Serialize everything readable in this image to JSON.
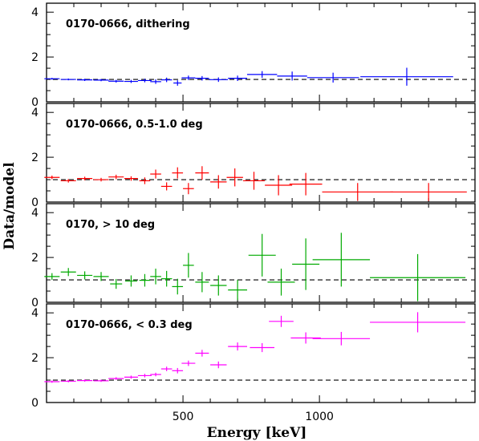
{
  "chart_data": {
    "type": "scatter",
    "xlabel": "Energy [keV]",
    "ylabel": "Data/model",
    "xlim": [
      0,
      1570
    ],
    "ylim": [
      0,
      4.4
    ],
    "x_ticks": [
      500,
      1000
    ],
    "y_ticks": [
      0,
      2,
      4
    ],
    "reference_line": 1,
    "panels": [
      {
        "label": "0170-0666, dithering",
        "color": "#0000ff",
        "points": [
          {
            "x": 20,
            "xerr": 28,
            "y": 1.03,
            "yerr": 0.04
          },
          {
            "x": 80,
            "xerr": 28,
            "y": 1.0,
            "yerr": 0.04
          },
          {
            "x": 140,
            "xerr": 28,
            "y": 0.98,
            "yerr": 0.05
          },
          {
            "x": 200,
            "xerr": 28,
            "y": 0.97,
            "yerr": 0.05
          },
          {
            "x": 255,
            "xerr": 28,
            "y": 0.92,
            "yerr": 0.06
          },
          {
            "x": 310,
            "xerr": 25,
            "y": 0.91,
            "yerr": 0.07
          },
          {
            "x": 360,
            "xerr": 25,
            "y": 0.95,
            "yerr": 0.08
          },
          {
            "x": 400,
            "xerr": 20,
            "y": 0.9,
            "yerr": 0.1
          },
          {
            "x": 440,
            "xerr": 20,
            "y": 0.98,
            "yerr": 0.1
          },
          {
            "x": 480,
            "xerr": 15,
            "y": 0.84,
            "yerr": 0.12
          },
          {
            "x": 520,
            "xerr": 25,
            "y": 1.07,
            "yerr": 0.1
          },
          {
            "x": 570,
            "xerr": 25,
            "y": 1.05,
            "yerr": 0.1
          },
          {
            "x": 630,
            "xerr": 35,
            "y": 0.99,
            "yerr": 0.1
          },
          {
            "x": 700,
            "xerr": 35,
            "y": 1.05,
            "yerr": 0.12
          },
          {
            "x": 790,
            "xerr": 55,
            "y": 1.22,
            "yerr": 0.15
          },
          {
            "x": 900,
            "xerr": 55,
            "y": 1.15,
            "yerr": 0.2
          },
          {
            "x": 1050,
            "xerr": 95,
            "y": 1.08,
            "yerr": 0.22
          },
          {
            "x": 1320,
            "xerr": 170,
            "y": 1.12,
            "yerr": 0.4
          }
        ]
      },
      {
        "label": "0170-0666, 0.5-1.0 deg",
        "color": "#ff0000",
        "points": [
          {
            "x": 20,
            "xerr": 28,
            "y": 1.1,
            "yerr": 0.08
          },
          {
            "x": 80,
            "xerr": 28,
            "y": 0.95,
            "yerr": 0.08
          },
          {
            "x": 140,
            "xerr": 28,
            "y": 1.05,
            "yerr": 0.08
          },
          {
            "x": 200,
            "xerr": 28,
            "y": 1.0,
            "yerr": 0.08
          },
          {
            "x": 255,
            "xerr": 28,
            "y": 1.12,
            "yerr": 0.1
          },
          {
            "x": 310,
            "xerr": 25,
            "y": 1.05,
            "yerr": 0.1
          },
          {
            "x": 360,
            "xerr": 20,
            "y": 0.95,
            "yerr": 0.15
          },
          {
            "x": 400,
            "xerr": 20,
            "y": 1.25,
            "yerr": 0.2
          },
          {
            "x": 440,
            "xerr": 20,
            "y": 0.7,
            "yerr": 0.18
          },
          {
            "x": 480,
            "xerr": 20,
            "y": 1.3,
            "yerr": 0.25
          },
          {
            "x": 520,
            "xerr": 20,
            "y": 0.6,
            "yerr": 0.25
          },
          {
            "x": 570,
            "xerr": 25,
            "y": 1.3,
            "yerr": 0.3
          },
          {
            "x": 630,
            "xerr": 30,
            "y": 0.9,
            "yerr": 0.3
          },
          {
            "x": 690,
            "xerr": 30,
            "y": 1.1,
            "yerr": 0.4
          },
          {
            "x": 760,
            "xerr": 40,
            "y": 0.95,
            "yerr": 0.4
          },
          {
            "x": 850,
            "xerr": 50,
            "y": 0.75,
            "yerr": 0.45
          },
          {
            "x": 950,
            "xerr": 60,
            "y": 0.8,
            "yerr": 0.5
          },
          {
            "x": 1140,
            "xerr": 130,
            "y": 0.45,
            "yerr": 0.4
          },
          {
            "x": 1400,
            "xerr": 140,
            "y": 0.45,
            "yerr": 0.4
          }
        ]
      },
      {
        "label": "0170, > 10 deg",
        "color": "#00aa00",
        "points": [
          {
            "x": 20,
            "xerr": 28,
            "y": 1.15,
            "yerr": 0.15
          },
          {
            "x": 80,
            "xerr": 28,
            "y": 1.35,
            "yerr": 0.18
          },
          {
            "x": 140,
            "xerr": 28,
            "y": 1.2,
            "yerr": 0.18
          },
          {
            "x": 200,
            "xerr": 28,
            "y": 1.15,
            "yerr": 0.2
          },
          {
            "x": 255,
            "xerr": 22,
            "y": 0.82,
            "yerr": 0.22
          },
          {
            "x": 310,
            "xerr": 22,
            "y": 0.95,
            "yerr": 0.25
          },
          {
            "x": 360,
            "xerr": 20,
            "y": 0.98,
            "yerr": 0.28
          },
          {
            "x": 400,
            "xerr": 20,
            "y": 1.15,
            "yerr": 0.35
          },
          {
            "x": 440,
            "xerr": 20,
            "y": 1.05,
            "yerr": 0.35
          },
          {
            "x": 480,
            "xerr": 20,
            "y": 0.7,
            "yerr": 0.35
          },
          {
            "x": 520,
            "xerr": 20,
            "y": 1.65,
            "yerr": 0.55
          },
          {
            "x": 570,
            "xerr": 25,
            "y": 0.9,
            "yerr": 0.45
          },
          {
            "x": 630,
            "xerr": 30,
            "y": 0.75,
            "yerr": 0.45
          },
          {
            "x": 700,
            "xerr": 35,
            "y": 0.55,
            "yerr": 0.45
          },
          {
            "x": 790,
            "xerr": 50,
            "y": 2.1,
            "yerr": 0.95
          },
          {
            "x": 860,
            "xerr": 50,
            "y": 0.9,
            "yerr": 0.6
          },
          {
            "x": 950,
            "xerr": 50,
            "y": 1.7,
            "yerr": 1.15
          },
          {
            "x": 1080,
            "xerr": 105,
            "y": 1.9,
            "yerr": 1.2
          },
          {
            "x": 1360,
            "xerr": 175,
            "y": 1.1,
            "yerr": 1.05
          }
        ]
      },
      {
        "label": "0170-0666, < 0.3 deg",
        "color": "#ff00ff",
        "points": [
          {
            "x": 20,
            "xerr": 28,
            "y": 0.93,
            "yerr": 0.05
          },
          {
            "x": 80,
            "xerr": 28,
            "y": 0.95,
            "yerr": 0.05
          },
          {
            "x": 140,
            "xerr": 28,
            "y": 0.98,
            "yerr": 0.05
          },
          {
            "x": 200,
            "xerr": 28,
            "y": 0.97,
            "yerr": 0.05
          },
          {
            "x": 255,
            "xerr": 28,
            "y": 1.07,
            "yerr": 0.06
          },
          {
            "x": 310,
            "xerr": 25,
            "y": 1.13,
            "yerr": 0.07
          },
          {
            "x": 360,
            "xerr": 25,
            "y": 1.2,
            "yerr": 0.08
          },
          {
            "x": 400,
            "xerr": 20,
            "y": 1.25,
            "yerr": 0.08
          },
          {
            "x": 440,
            "xerr": 20,
            "y": 1.5,
            "yerr": 0.1
          },
          {
            "x": 480,
            "xerr": 20,
            "y": 1.42,
            "yerr": 0.12
          },
          {
            "x": 520,
            "xerr": 25,
            "y": 1.75,
            "yerr": 0.12
          },
          {
            "x": 570,
            "xerr": 25,
            "y": 2.2,
            "yerr": 0.15
          },
          {
            "x": 630,
            "xerr": 30,
            "y": 1.68,
            "yerr": 0.15
          },
          {
            "x": 700,
            "xerr": 35,
            "y": 2.5,
            "yerr": 0.18
          },
          {
            "x": 790,
            "xerr": 45,
            "y": 2.45,
            "yerr": 0.2
          },
          {
            "x": 860,
            "xerr": 45,
            "y": 3.62,
            "yerr": 0.25
          },
          {
            "x": 950,
            "xerr": 55,
            "y": 2.88,
            "yerr": 0.25
          },
          {
            "x": 1080,
            "xerr": 105,
            "y": 2.85,
            "yerr": 0.3
          },
          {
            "x": 1360,
            "xerr": 175,
            "y": 3.58,
            "yerr": 0.45
          }
        ]
      }
    ]
  }
}
